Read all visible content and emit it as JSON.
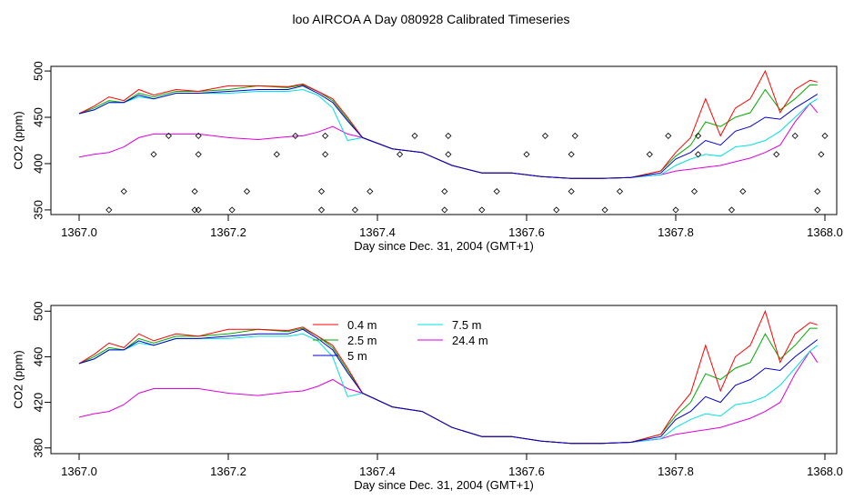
{
  "figure_title": "loo AIRCOA A  Day 080928  Calibrated Timeseries",
  "chart_data": [
    {
      "type": "line",
      "xlabel": "Day since Dec. 31, 2004 (GMT+1)",
      "ylabel": "CO2 (ppm)",
      "xlim": [
        1367.0,
        1368.0
      ],
      "ylim": [
        345,
        505
      ],
      "xticks": [
        "1367.0",
        "1367.2",
        "1367.4",
        "1367.6",
        "1367.8",
        "1368.0"
      ],
      "yticks": [
        "350",
        "400",
        "450",
        "500"
      ],
      "legend": "none",
      "series": [
        {
          "name": "0.4 m",
          "color": "#ff0000",
          "x": [
            1367.0,
            1367.02,
            1367.04,
            1367.06,
            1367.08,
            1367.1,
            1367.13,
            1367.16,
            1367.2,
            1367.24,
            1367.28,
            1367.3,
            1367.32,
            1367.34,
            1367.36,
            1367.38,
            1367.42,
            1367.46,
            1367.5,
            1367.54,
            1367.58,
            1367.62,
            1367.66,
            1367.7,
            1367.74,
            1367.78,
            1367.8,
            1367.82,
            1367.84,
            1367.86,
            1367.88,
            1367.9,
            1367.92,
            1367.94,
            1367.96,
            1367.98,
            1367.99
          ],
          "y": [
            454,
            462,
            472,
            468,
            480,
            474,
            480,
            478,
            484,
            484,
            483,
            486,
            478,
            470,
            450,
            428,
            416,
            412,
            398,
            390,
            390,
            386,
            384,
            384,
            385,
            392,
            412,
            428,
            470,
            430,
            460,
            470,
            500,
            455,
            480,
            490,
            488
          ]
        },
        {
          "name": "2.5 m",
          "color": "#00aa00",
          "x": [
            1367.0,
            1367.02,
            1367.04,
            1367.06,
            1367.08,
            1367.1,
            1367.13,
            1367.16,
            1367.2,
            1367.24,
            1367.28,
            1367.3,
            1367.32,
            1367.34,
            1367.36,
            1367.38,
            1367.42,
            1367.46,
            1367.5,
            1367.54,
            1367.58,
            1367.62,
            1367.66,
            1367.7,
            1367.74,
            1367.78,
            1367.8,
            1367.82,
            1367.84,
            1367.86,
            1367.88,
            1367.9,
            1367.92,
            1367.94,
            1367.96,
            1367.98,
            1367.99
          ],
          "y": [
            454,
            460,
            468,
            466,
            476,
            472,
            478,
            478,
            480,
            484,
            482,
            485,
            478,
            468,
            448,
            428,
            416,
            412,
            398,
            390,
            390,
            386,
            384,
            384,
            385,
            392,
            408,
            420,
            445,
            440,
            450,
            455,
            480,
            458,
            470,
            485,
            485
          ]
        },
        {
          "name": "5 m",
          "color": "#0000cc",
          "x": [
            1367.0,
            1367.02,
            1367.04,
            1367.06,
            1367.08,
            1367.1,
            1367.13,
            1367.16,
            1367.2,
            1367.24,
            1367.28,
            1367.3,
            1367.32,
            1367.34,
            1367.36,
            1367.38,
            1367.42,
            1367.46,
            1367.5,
            1367.54,
            1367.58,
            1367.62,
            1367.66,
            1367.7,
            1367.74,
            1367.78,
            1367.8,
            1367.82,
            1367.84,
            1367.86,
            1367.88,
            1367.9,
            1367.92,
            1367.94,
            1367.96,
            1367.98,
            1367.99
          ],
          "y": [
            454,
            458,
            466,
            466,
            474,
            470,
            476,
            476,
            478,
            480,
            480,
            484,
            476,
            466,
            446,
            428,
            416,
            412,
            398,
            390,
            390,
            386,
            384,
            384,
            385,
            390,
            405,
            412,
            425,
            420,
            435,
            440,
            450,
            448,
            460,
            470,
            475
          ]
        },
        {
          "name": "7.5 m",
          "color": "#00e0e0",
          "x": [
            1367.0,
            1367.02,
            1367.04,
            1367.06,
            1367.08,
            1367.1,
            1367.13,
            1367.16,
            1367.2,
            1367.24,
            1367.28,
            1367.3,
            1367.32,
            1367.34,
            1367.36,
            1367.38,
            1367.42,
            1367.46,
            1367.5,
            1367.54,
            1367.58,
            1367.62,
            1367.66,
            1367.7,
            1367.74,
            1367.78,
            1367.8,
            1367.82,
            1367.84,
            1367.86,
            1367.88,
            1367.9,
            1367.92,
            1367.94,
            1367.96,
            1367.98,
            1367.99
          ],
          "y": [
            454,
            458,
            466,
            466,
            472,
            470,
            476,
            476,
            476,
            478,
            478,
            480,
            474,
            460,
            425,
            428,
            416,
            412,
            398,
            390,
            390,
            386,
            384,
            384,
            385,
            388,
            398,
            405,
            410,
            408,
            418,
            420,
            425,
            435,
            450,
            465,
            470
          ]
        },
        {
          "name": "24.4 m",
          "color": "#dd00dd",
          "x": [
            1367.0,
            1367.02,
            1367.04,
            1367.06,
            1367.08,
            1367.1,
            1367.12,
            1367.16,
            1367.2,
            1367.24,
            1367.28,
            1367.3,
            1367.32,
            1367.34,
            1367.36,
            1367.38,
            1367.42,
            1367.46,
            1367.5,
            1367.54,
            1367.58,
            1367.62,
            1367.66,
            1367.7,
            1367.74,
            1367.78,
            1367.8,
            1367.82,
            1367.84,
            1367.86,
            1367.88,
            1367.9,
            1367.92,
            1367.94,
            1367.96,
            1367.98,
            1367.99
          ],
          "y": [
            407,
            410,
            412,
            418,
            428,
            432,
            432,
            432,
            428,
            426,
            429,
            430,
            434,
            440,
            432,
            428,
            416,
            412,
            398,
            390,
            390,
            386,
            384,
            384,
            385,
            388,
            392,
            394,
            396,
            398,
            402,
            406,
            412,
            420,
            445,
            465,
            455
          ]
        }
      ],
      "markers": {
        "color": "#000000",
        "x": [
          1367.04,
          1367.06,
          1367.1,
          1367.12,
          1367.155,
          1367.155,
          1367.16,
          1367.16,
          1367.16,
          1367.205,
          1367.225,
          1367.265,
          1367.29,
          1367.325,
          1367.325,
          1367.33,
          1367.33,
          1367.37,
          1367.39,
          1367.43,
          1367.45,
          1367.49,
          1367.49,
          1367.495,
          1367.495,
          1367.54,
          1367.56,
          1367.6,
          1367.625,
          1367.64,
          1367.66,
          1367.66,
          1367.665,
          1367.705,
          1367.725,
          1367.765,
          1367.79,
          1367.8,
          1367.825,
          1367.83,
          1367.83,
          1367.875,
          1367.89,
          1367.935,
          1367.96,
          1367.99,
          1367.99,
          1367.995,
          1368.0
        ],
        "y": [
          350,
          370,
          410,
          430,
          350,
          370,
          410,
          430,
          350,
          350,
          370,
          410,
          430,
          350,
          370,
          410,
          430,
          350,
          370,
          410,
          430,
          350,
          370,
          410,
          430,
          350,
          370,
          410,
          430,
          350,
          370,
          410,
          430,
          350,
          370,
          410,
          430,
          350,
          370,
          410,
          430,
          350,
          370,
          410,
          430,
          350,
          370,
          410,
          430
        ]
      }
    },
    {
      "type": "line",
      "xlabel": "Day since Dec. 31, 2004 (GMT+1)",
      "ylabel": "CO2 (ppm)",
      "xlim": [
        1367.0,
        1368.0
      ],
      "ylim": [
        375,
        505
      ],
      "xticks": [
        "1367.0",
        "1367.2",
        "1367.4",
        "1367.6",
        "1367.8",
        "1368.0"
      ],
      "yticks": [
        "380",
        "420",
        "460",
        "500"
      ],
      "legend": "top-center",
      "series": [
        {
          "name": "0.4 m",
          "color": "#ff0000",
          "x": [
            1367.0,
            1367.02,
            1367.04,
            1367.06,
            1367.08,
            1367.1,
            1367.13,
            1367.16,
            1367.2,
            1367.24,
            1367.28,
            1367.3,
            1367.32,
            1367.34,
            1367.36,
            1367.38,
            1367.42,
            1367.46,
            1367.5,
            1367.54,
            1367.58,
            1367.62,
            1367.66,
            1367.7,
            1367.74,
            1367.78,
            1367.8,
            1367.82,
            1367.84,
            1367.86,
            1367.88,
            1367.9,
            1367.92,
            1367.94,
            1367.96,
            1367.98,
            1367.99
          ],
          "y": [
            454,
            462,
            472,
            468,
            480,
            474,
            480,
            478,
            484,
            484,
            483,
            486,
            478,
            470,
            450,
            428,
            416,
            412,
            398,
            390,
            390,
            386,
            384,
            384,
            385,
            392,
            412,
            428,
            470,
            430,
            460,
            470,
            500,
            455,
            480,
            490,
            488
          ]
        },
        {
          "name": "2.5 m",
          "color": "#00aa00",
          "x": [
            1367.0,
            1367.02,
            1367.04,
            1367.06,
            1367.08,
            1367.1,
            1367.13,
            1367.16,
            1367.2,
            1367.24,
            1367.28,
            1367.3,
            1367.32,
            1367.34,
            1367.36,
            1367.38,
            1367.42,
            1367.46,
            1367.5,
            1367.54,
            1367.58,
            1367.62,
            1367.66,
            1367.7,
            1367.74,
            1367.78,
            1367.8,
            1367.82,
            1367.84,
            1367.86,
            1367.88,
            1367.9,
            1367.92,
            1367.94,
            1367.96,
            1367.98,
            1367.99
          ],
          "y": [
            454,
            460,
            468,
            466,
            476,
            472,
            478,
            478,
            480,
            484,
            482,
            485,
            478,
            468,
            448,
            428,
            416,
            412,
            398,
            390,
            390,
            386,
            384,
            384,
            385,
            392,
            408,
            420,
            445,
            440,
            450,
            455,
            480,
            458,
            470,
            485,
            485
          ]
        },
        {
          "name": "5 m",
          "color": "#0000cc",
          "x": [
            1367.0,
            1367.02,
            1367.04,
            1367.06,
            1367.08,
            1367.1,
            1367.13,
            1367.16,
            1367.2,
            1367.24,
            1367.28,
            1367.3,
            1367.32,
            1367.34,
            1367.36,
            1367.38,
            1367.42,
            1367.46,
            1367.5,
            1367.54,
            1367.58,
            1367.62,
            1367.66,
            1367.7,
            1367.74,
            1367.78,
            1367.8,
            1367.82,
            1367.84,
            1367.86,
            1367.88,
            1367.9,
            1367.92,
            1367.94,
            1367.96,
            1367.98,
            1367.99
          ],
          "y": [
            454,
            458,
            466,
            466,
            474,
            470,
            476,
            476,
            478,
            480,
            480,
            484,
            476,
            466,
            446,
            428,
            416,
            412,
            398,
            390,
            390,
            386,
            384,
            384,
            385,
            390,
            405,
            412,
            425,
            420,
            435,
            440,
            450,
            448,
            460,
            470,
            475
          ]
        },
        {
          "name": "7.5 m",
          "color": "#00e0e0",
          "x": [
            1367.0,
            1367.02,
            1367.04,
            1367.06,
            1367.08,
            1367.1,
            1367.13,
            1367.16,
            1367.2,
            1367.24,
            1367.28,
            1367.3,
            1367.32,
            1367.34,
            1367.36,
            1367.38,
            1367.42,
            1367.46,
            1367.5,
            1367.54,
            1367.58,
            1367.62,
            1367.66,
            1367.7,
            1367.74,
            1367.78,
            1367.8,
            1367.82,
            1367.84,
            1367.86,
            1367.88,
            1367.9,
            1367.92,
            1367.94,
            1367.96,
            1367.98,
            1367.99
          ],
          "y": [
            454,
            458,
            466,
            466,
            472,
            470,
            476,
            476,
            476,
            478,
            478,
            480,
            474,
            460,
            425,
            428,
            416,
            412,
            398,
            390,
            390,
            386,
            384,
            384,
            385,
            388,
            398,
            405,
            410,
            408,
            418,
            420,
            425,
            435,
            450,
            465,
            470
          ]
        },
        {
          "name": "24.4 m",
          "color": "#dd00dd",
          "x": [
            1367.0,
            1367.02,
            1367.04,
            1367.06,
            1367.08,
            1367.1,
            1367.12,
            1367.16,
            1367.2,
            1367.24,
            1367.28,
            1367.3,
            1367.32,
            1367.34,
            1367.36,
            1367.38,
            1367.42,
            1367.46,
            1367.5,
            1367.54,
            1367.58,
            1367.62,
            1367.66,
            1367.7,
            1367.74,
            1367.78,
            1367.8,
            1367.82,
            1367.84,
            1367.86,
            1367.88,
            1367.9,
            1367.92,
            1367.94,
            1367.96,
            1367.98,
            1367.99
          ],
          "y": [
            407,
            410,
            412,
            418,
            428,
            432,
            432,
            432,
            428,
            426,
            429,
            430,
            434,
            440,
            432,
            428,
            416,
            412,
            398,
            390,
            390,
            386,
            384,
            384,
            385,
            388,
            392,
            394,
            396,
            398,
            402,
            406,
            412,
            420,
            445,
            465,
            455
          ]
        }
      ]
    }
  ]
}
